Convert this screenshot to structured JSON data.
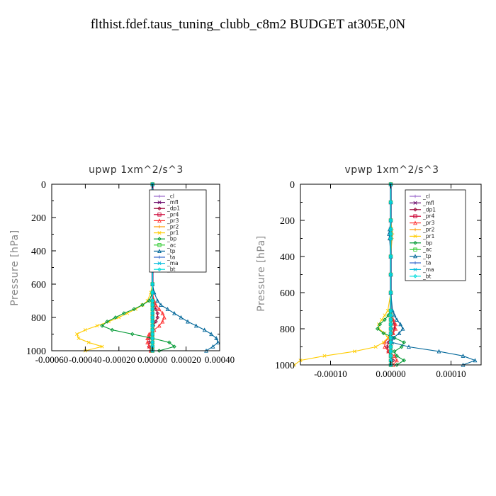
{
  "suptitle": "flthist.fdef.taus_tuning_clubb_c8m2  BUDGET at305E,0N",
  "legend_colors": {
    "_cl": "#9966cc",
    "_mfl": "#660066",
    "_dp1": "#990033",
    "_pr4": "#cc0033",
    "_pr3": "#ff3333",
    "_pr2": "#ff9900",
    "_pr1": "#ffcc00",
    "_bp": "#009933",
    "_ac": "#33cc33",
    "_tp": "#006699",
    "_ta": "#3366cc",
    "_ma": "#00bbdd",
    "_bt": "#00dddd"
  },
  "chart_data": [
    {
      "type": "line",
      "title": "upwp  1xm^2/s^3",
      "ylabel": "Pressure [hPa]",
      "xlabel": "",
      "xlim": [
        -0.0006,
        0.0004
      ],
      "ylim": [
        1000,
        0
      ],
      "grid": false,
      "legend_position": "top-right",
      "yticks": [
        "0",
        "200",
        "400",
        "600",
        "800",
        "1000"
      ],
      "xticks": [
        "-0.00060",
        "-0.00040",
        "-0.00020",
        "0.00000",
        "0.00020",
        "0.00040"
      ],
      "legend": [
        "_cl",
        "_mfl",
        "_dp1",
        "_pr4",
        "_pr3",
        "_pr2",
        "_pr1",
        "_bp",
        "_ac",
        "_tp",
        "_ta",
        "_ma",
        "_bt"
      ],
      "y": [
        0,
        100,
        200,
        300,
        400,
        500,
        600,
        650,
        700,
        725,
        750,
        775,
        800,
        825,
        850,
        875,
        900,
        925,
        950,
        975,
        1000
      ],
      "series": [
        {
          "name": "_cl",
          "values": [
            0,
            0,
            0,
            0,
            0,
            0,
            0,
            0,
            0,
            0,
            0,
            0,
            0,
            0,
            0,
            0,
            0,
            0,
            0,
            0,
            0
          ]
        },
        {
          "name": "_mfl",
          "values": [
            0,
            0,
            0,
            0,
            0,
            0,
            0,
            0,
            0,
            0,
            0,
            0,
            0,
            0,
            0,
            0,
            0,
            0,
            0,
            0,
            0
          ]
        },
        {
          "name": "_dp1",
          "values": [
            0,
            0,
            0,
            0,
            0,
            0,
            0,
            0,
            5e-06,
            1e-05,
            2e-05,
            3e-05,
            3e-05,
            2e-05,
            5e-06,
            0,
            -1e-05,
            -2e-05,
            -2e-05,
            -2e-05,
            -1e-05
          ]
        },
        {
          "name": "_pr4",
          "values": [
            0,
            0,
            0,
            0,
            0,
            0,
            0,
            0,
            0,
            0,
            0,
            0,
            0,
            0,
            0,
            0,
            0,
            0,
            0,
            0,
            0
          ]
        },
        {
          "name": "_pr3",
          "values": [
            0,
            0,
            0,
            0,
            0,
            0,
            0,
            0,
            1e-05,
            2e-05,
            4e-05,
            6e-05,
            7e-05,
            6e-05,
            4e-05,
            1e-05,
            -2e-05,
            -3e-05,
            -3e-05,
            -2e-05,
            -1e-05
          ]
        },
        {
          "name": "_pr2",
          "values": [
            0,
            0,
            0,
            0,
            0,
            0,
            0,
            0,
            0,
            0,
            0,
            0,
            0,
            0,
            0,
            0,
            0,
            0,
            0,
            0,
            0
          ]
        },
        {
          "name": "_pr1",
          "values": [
            0,
            0,
            0,
            0,
            0,
            0,
            0,
            -1e-05,
            -3e-05,
            -6e-05,
            -0.0001,
            -0.00015,
            -0.0002,
            -0.00026,
            -0.00033,
            -0.0004,
            -0.00045,
            -0.00044,
            -0.00038,
            -0.0003,
            -0.0004
          ]
        },
        {
          "name": "_bp",
          "values": [
            0,
            0,
            0,
            0,
            0,
            0,
            0,
            0,
            -2e-05,
            -6e-05,
            -0.00011,
            -0.00017,
            -0.00022,
            -0.00027,
            -0.0003,
            -0.00024,
            -0.00012,
            0,
            0.0001,
            0.00013,
            4e-05
          ]
        },
        {
          "name": "_ac",
          "values": [
            0,
            0,
            0,
            0,
            0,
            0,
            0,
            0,
            0,
            0,
            0,
            0,
            0,
            0,
            0,
            0,
            0,
            0,
            0,
            0,
            0
          ]
        },
        {
          "name": "_tp",
          "values": [
            0,
            0,
            0,
            0,
            0,
            0,
            0,
            1e-05,
            3e-05,
            5e-05,
            9e-05,
            0.00013,
            0.00017,
            0.00021,
            0.00026,
            0.00031,
            0.00035,
            0.00038,
            0.00039,
            0.00036,
            0.00032
          ]
        },
        {
          "name": "_ta",
          "values": [
            0,
            0,
            0,
            0,
            0,
            0,
            0,
            0,
            0,
            0,
            0,
            0,
            0,
            0,
            0,
            0,
            0,
            0,
            0,
            0,
            0
          ]
        },
        {
          "name": "_ma",
          "values": [
            0,
            0,
            0,
            0,
            0,
            0,
            0,
            0,
            0,
            0,
            0,
            0,
            0,
            0,
            0,
            0,
            0,
            0,
            0,
            0,
            0
          ]
        },
        {
          "name": "_bt",
          "values": [
            0,
            0,
            0,
            0,
            0,
            0,
            0,
            0,
            0,
            0,
            0,
            0,
            0,
            0,
            0,
            0,
            0,
            0,
            0,
            0,
            0
          ]
        }
      ]
    },
    {
      "type": "line",
      "title": "vpwp  1xm^2/s^3",
      "ylabel": "Pressure [hPa]",
      "xlabel": "",
      "xlim": [
        -0.00015,
        0.00015
      ],
      "ylim": [
        1000,
        0
      ],
      "grid": false,
      "legend_position": "top-right",
      "yticks": [
        "0",
        "200",
        "400",
        "600",
        "800",
        "1000"
      ],
      "xticks": [
        "-0.00010",
        "0.00000",
        "0.00010"
      ],
      "legend": [
        "_cl",
        "_mfl",
        "_dp1",
        "_pr4",
        "_pr3",
        "_pr2",
        "_pr1",
        "_bp",
        "_ac",
        "_tp",
        "_ta",
        "_ma",
        "_bt"
      ],
      "y": [
        0,
        100,
        200,
        250,
        275,
        300,
        400,
        500,
        600,
        700,
        725,
        750,
        775,
        800,
        825,
        850,
        875,
        900,
        925,
        950,
        975,
        1000
      ],
      "series": [
        {
          "name": "_cl",
          "values": [
            0,
            0,
            0,
            0,
            0,
            0,
            0,
            0,
            0,
            0,
            0,
            0,
            0,
            0,
            0,
            0,
            0,
            0,
            0,
            0,
            0,
            0
          ]
        },
        {
          "name": "_mfl",
          "values": [
            0,
            0,
            0,
            0,
            0,
            0,
            0,
            0,
            0,
            0,
            0,
            0,
            0,
            0,
            0,
            0,
            0,
            0,
            0,
            0,
            0,
            0
          ]
        },
        {
          "name": "_dp1",
          "values": [
            0,
            0,
            0,
            0,
            0,
            0,
            0,
            0,
            0,
            0,
            0,
            3e-06,
            6e-06,
            6e-06,
            3e-06,
            0,
            -4e-06,
            -6e-06,
            -4e-06,
            0,
            4e-06,
            0
          ]
        },
        {
          "name": "_pr4",
          "values": [
            0,
            0,
            0,
            0,
            0,
            0,
            0,
            0,
            0,
            0,
            0,
            0,
            0,
            0,
            0,
            0,
            0,
            0,
            0,
            0,
            0,
            0
          ]
        },
        {
          "name": "_pr3",
          "values": [
            0,
            0,
            0,
            0,
            0,
            0,
            0,
            0,
            0,
            0,
            0,
            4e-06,
            8e-06,
            8e-06,
            4e-06,
            -4e-06,
            -1e-05,
            -1e-05,
            -4e-06,
            6e-06,
            1e-05,
            4e-06
          ]
        },
        {
          "name": "_pr2",
          "values": [
            0,
            0,
            0,
            2e-06,
            3e-06,
            2e-06,
            0,
            0,
            0,
            0,
            0,
            0,
            0,
            0,
            0,
            0,
            0,
            0,
            0,
            0,
            0,
            0
          ]
        },
        {
          "name": "_pr1",
          "values": [
            0,
            0,
            0,
            0,
            0,
            0,
            0,
            0,
            0,
            -5e-06,
            -1e-05,
            -1.5e-05,
            -2e-05,
            -2e-05,
            -1e-05,
            -5e-06,
            -1.2e-05,
            -2.5e-05,
            -6e-05,
            -0.00011,
            -0.00015,
            -0.00016
          ]
        },
        {
          "name": "_bp",
          "values": [
            0,
            0,
            0,
            0,
            0,
            0,
            0,
            0,
            0,
            0,
            -4e-06,
            -1e-05,
            -1.8e-05,
            -2.2e-05,
            -1.2e-05,
            6e-06,
            2.2e-05,
            1.8e-05,
            6e-06,
            1e-05,
            2.2e-05,
            1e-05
          ]
        },
        {
          "name": "_ac",
          "values": [
            0,
            0,
            0,
            0,
            0,
            0,
            0,
            0,
            0,
            0,
            0,
            0,
            0,
            0,
            0,
            0,
            0,
            0,
            0,
            0,
            0,
            0
          ]
        },
        {
          "name": "_tp",
          "values": [
            0,
            0,
            0,
            -2e-06,
            -3e-06,
            -2e-06,
            0,
            0,
            0,
            3e-06,
            6e-06,
            1e-05,
            1.6e-05,
            2e-05,
            1.4e-05,
            4e-06,
            2e-06,
            3e-05,
            8e-05,
            0.00012,
            0.00014,
            0.00012
          ]
        },
        {
          "name": "_ta",
          "values": [
            0,
            0,
            0,
            0,
            0,
            0,
            0,
            0,
            0,
            0,
            0,
            0,
            0,
            0,
            0,
            0,
            0,
            0,
            0,
            0,
            0,
            0
          ]
        },
        {
          "name": "_ma",
          "values": [
            0,
            0,
            0,
            0,
            0,
            0,
            0,
            0,
            0,
            0,
            0,
            0,
            0,
            0,
            0,
            0,
            0,
            0,
            0,
            0,
            0,
            0
          ]
        },
        {
          "name": "_bt",
          "values": [
            0,
            0,
            0,
            0,
            0,
            0,
            0,
            0,
            0,
            0,
            0,
            0,
            0,
            0,
            0,
            0,
            0,
            0,
            0,
            0,
            0,
            0
          ]
        }
      ]
    }
  ]
}
